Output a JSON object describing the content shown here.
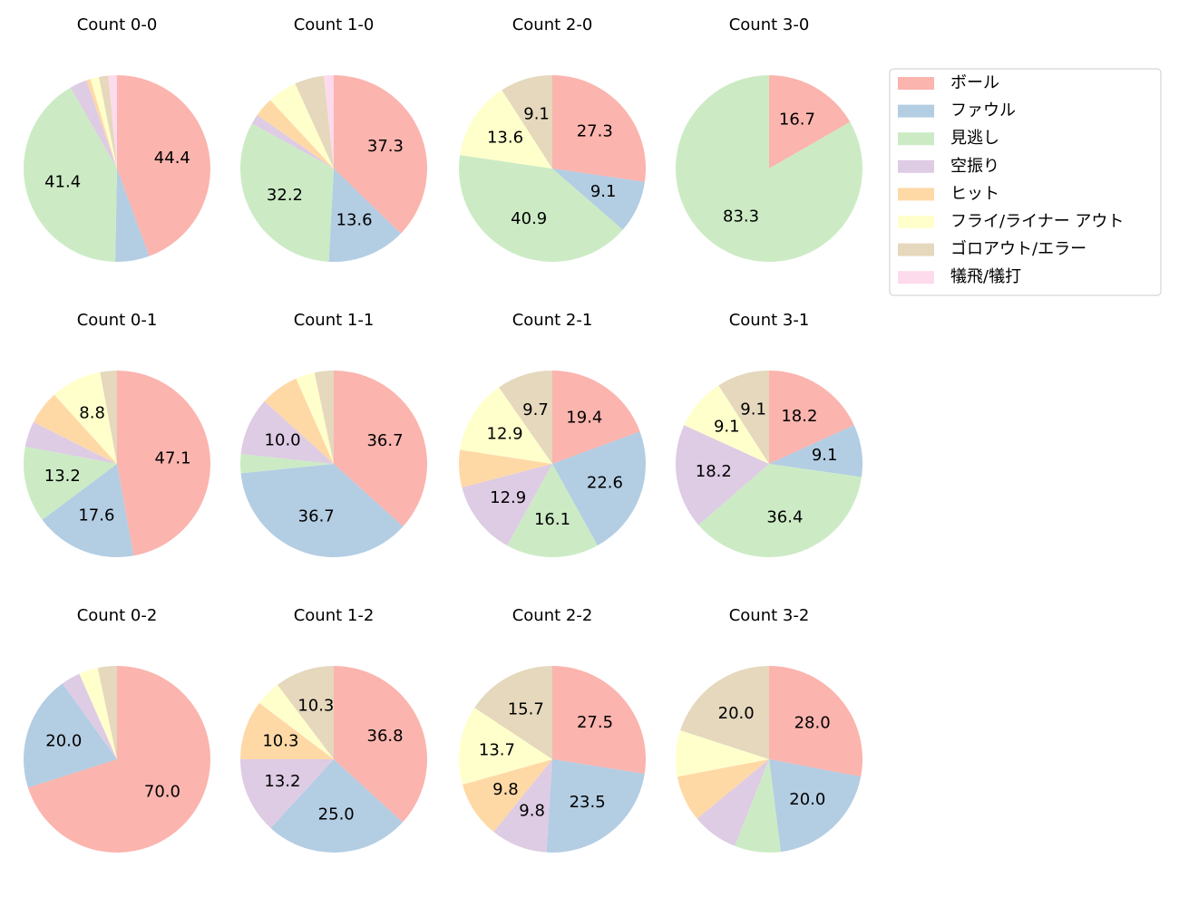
{
  "chart_data": [
    {
      "type": "pie",
      "title": "Count 0-0",
      "categories": [
        "ボール",
        "ファウル",
        "見逃し",
        "空振り",
        "ヒット",
        "フライ/ライナー アウト",
        "ゴロアウト/エラー",
        "犠飛/犠打"
      ],
      "colors": [
        "#fbb4ae",
        "#b3cde3",
        "#ccebc5",
        "#decbe4",
        "#fed9a6",
        "#ffffcc",
        "#e5d8bd",
        "#fddaec"
      ],
      "values": [
        44.4,
        5.9,
        41.4,
        3.0,
        0.7,
        1.5,
        1.6,
        1.5
      ],
      "value_labels": [
        "44.4",
        null,
        "41.4",
        null,
        null,
        null,
        null,
        null
      ]
    },
    {
      "type": "pie",
      "title": "Count 1-0",
      "categories": [
        "ボール",
        "ファウル",
        "見逃し",
        "空振り",
        "ヒット",
        "フライ/ライナー アウト",
        "ゴロアウト/エラー",
        "犠飛/犠打"
      ],
      "colors": [
        "#fbb4ae",
        "#b3cde3",
        "#ccebc5",
        "#decbe4",
        "#fed9a6",
        "#ffffcc",
        "#e5d8bd",
        "#fddaec"
      ],
      "values": [
        37.3,
        13.6,
        32.2,
        1.7,
        3.4,
        5.1,
        5.1,
        1.7
      ],
      "value_labels": [
        "37.3",
        "13.6",
        "32.2",
        null,
        null,
        null,
        null,
        null
      ]
    },
    {
      "type": "pie",
      "title": "Count 2-0",
      "categories": [
        "ボール",
        "ファウル",
        "見逃し",
        "空振り",
        "ヒット",
        "フライ/ライナー アウト",
        "ゴロアウト/エラー",
        "犠飛/犠打"
      ],
      "colors": [
        "#fbb4ae",
        "#b3cde3",
        "#ccebc5",
        "#decbe4",
        "#fed9a6",
        "#ffffcc",
        "#e5d8bd",
        "#fddaec"
      ],
      "values": [
        27.3,
        9.1,
        40.9,
        0,
        0,
        13.6,
        9.1,
        0
      ],
      "value_labels": [
        "27.3",
        "9.1",
        "40.9",
        null,
        null,
        "13.6",
        "9.1",
        null
      ]
    },
    {
      "type": "pie",
      "title": "Count 3-0",
      "categories": [
        "ボール",
        "ファウル",
        "見逃し",
        "空振り",
        "ヒット",
        "フライ/ライナー アウト",
        "ゴロアウト/エラー",
        "犠飛/犠打"
      ],
      "colors": [
        "#fbb4ae",
        "#b3cde3",
        "#ccebc5",
        "#decbe4",
        "#fed9a6",
        "#ffffcc",
        "#e5d8bd",
        "#fddaec"
      ],
      "values": [
        16.7,
        0,
        83.3,
        0,
        0,
        0,
        0,
        0
      ],
      "value_labels": [
        "16.7",
        null,
        "83.3",
        null,
        null,
        null,
        null,
        null
      ]
    },
    {
      "type": "pie",
      "title": "Count 0-1",
      "categories": [
        "ボール",
        "ファウル",
        "見逃し",
        "空振り",
        "ヒット",
        "フライ/ライナー アウト",
        "ゴロアウト/エラー",
        "犠飛/犠打"
      ],
      "colors": [
        "#fbb4ae",
        "#b3cde3",
        "#ccebc5",
        "#decbe4",
        "#fed9a6",
        "#ffffcc",
        "#e5d8bd",
        "#fddaec"
      ],
      "values": [
        47.1,
        17.6,
        13.2,
        4.4,
        5.9,
        8.8,
        2.9,
        0
      ],
      "value_labels": [
        "47.1",
        "17.6",
        "13.2",
        null,
        null,
        "8.8",
        null,
        null
      ]
    },
    {
      "type": "pie",
      "title": "Count 1-1",
      "categories": [
        "ボール",
        "ファウル",
        "見逃し",
        "空振り",
        "ヒット",
        "フライ/ライナー アウト",
        "ゴロアウト/エラー",
        "犠飛/犠打"
      ],
      "colors": [
        "#fbb4ae",
        "#b3cde3",
        "#ccebc5",
        "#decbe4",
        "#fed9a6",
        "#ffffcc",
        "#e5d8bd",
        "#fddaec"
      ],
      "values": [
        36.7,
        36.7,
        3.3,
        10.0,
        6.7,
        3.3,
        3.3,
        0
      ],
      "value_labels": [
        "36.7",
        "36.7",
        null,
        "10.0",
        null,
        null,
        null,
        null
      ]
    },
    {
      "type": "pie",
      "title": "Count 2-1",
      "categories": [
        "ボール",
        "ファウル",
        "見逃し",
        "空振り",
        "ヒット",
        "フライ/ライナー アウト",
        "ゴロアウト/エラー",
        "犠飛/犠打"
      ],
      "colors": [
        "#fbb4ae",
        "#b3cde3",
        "#ccebc5",
        "#decbe4",
        "#fed9a6",
        "#ffffcc",
        "#e5d8bd",
        "#fddaec"
      ],
      "values": [
        19.4,
        22.6,
        16.1,
        12.9,
        6.5,
        12.9,
        9.7,
        0
      ],
      "value_labels": [
        "19.4",
        "22.6",
        "16.1",
        "12.9",
        null,
        "12.9",
        "9.7",
        null
      ]
    },
    {
      "type": "pie",
      "title": "Count 3-1",
      "categories": [
        "ボール",
        "ファウル",
        "見逃し",
        "空振り",
        "ヒット",
        "フライ/ライナー アウト",
        "ゴロアウト/エラー",
        "犠飛/犠打"
      ],
      "colors": [
        "#fbb4ae",
        "#b3cde3",
        "#ccebc5",
        "#decbe4",
        "#fed9a6",
        "#ffffcc",
        "#e5d8bd",
        "#fddaec"
      ],
      "values": [
        18.2,
        9.1,
        36.4,
        18.2,
        0,
        9.1,
        9.1,
        0
      ],
      "value_labels": [
        "18.2",
        "9.1",
        "36.4",
        "18.2",
        null,
        "9.1",
        "9.1",
        null
      ]
    },
    {
      "type": "pie",
      "title": "Count 0-2",
      "categories": [
        "ボール",
        "ファウル",
        "見逃し",
        "空振り",
        "ヒット",
        "フライ/ライナー アウト",
        "ゴロアウト/エラー",
        "犠飛/犠打"
      ],
      "colors": [
        "#fbb4ae",
        "#b3cde3",
        "#ccebc5",
        "#decbe4",
        "#fed9a6",
        "#ffffcc",
        "#e5d8bd",
        "#fddaec"
      ],
      "values": [
        70.0,
        20.0,
        0,
        3.3,
        0,
        3.3,
        3.3,
        0
      ],
      "value_labels": [
        "70.0",
        "20.0",
        null,
        null,
        null,
        null,
        null,
        null
      ]
    },
    {
      "type": "pie",
      "title": "Count 1-2",
      "categories": [
        "ボール",
        "ファウル",
        "見逃し",
        "空振り",
        "ヒット",
        "フライ/ライナー アウト",
        "ゴロアウト/エラー",
        "犠飛/犠打"
      ],
      "colors": [
        "#fbb4ae",
        "#b3cde3",
        "#ccebc5",
        "#decbe4",
        "#fed9a6",
        "#ffffcc",
        "#e5d8bd",
        "#fddaec"
      ],
      "values": [
        36.8,
        25.0,
        0,
        13.2,
        10.3,
        4.4,
        10.3,
        0
      ],
      "value_labels": [
        "36.8",
        "25.0",
        null,
        "13.2",
        "10.3",
        null,
        "10.3",
        null
      ]
    },
    {
      "type": "pie",
      "title": "Count 2-2",
      "categories": [
        "ボール",
        "ファウル",
        "見逃し",
        "空振り",
        "ヒット",
        "フライ/ライナー アウト",
        "ゴロアウト/エラー",
        "犠飛/犠打"
      ],
      "colors": [
        "#fbb4ae",
        "#b3cde3",
        "#ccebc5",
        "#decbe4",
        "#fed9a6",
        "#ffffcc",
        "#e5d8bd",
        "#fddaec"
      ],
      "values": [
        27.5,
        23.5,
        0,
        9.8,
        9.8,
        13.7,
        15.7,
        0
      ],
      "value_labels": [
        "27.5",
        "23.5",
        null,
        "9.8",
        "9.8",
        "13.7",
        "15.7",
        null
      ]
    },
    {
      "type": "pie",
      "title": "Count 3-2",
      "categories": [
        "ボール",
        "ファウル",
        "見逃し",
        "空振り",
        "ヒット",
        "フライ/ライナー アウト",
        "ゴロアウト/エラー",
        "犠飛/犠打"
      ],
      "colors": [
        "#fbb4ae",
        "#b3cde3",
        "#ccebc5",
        "#decbe4",
        "#fed9a6",
        "#ffffcc",
        "#e5d8bd",
        "#fddaec"
      ],
      "values": [
        28.0,
        20.0,
        8.0,
        8.0,
        8.0,
        8.0,
        20.0,
        0
      ],
      "value_labels": [
        "28.0",
        "20.0",
        null,
        null,
        null,
        null,
        "20.0",
        null
      ]
    }
  ]
}
